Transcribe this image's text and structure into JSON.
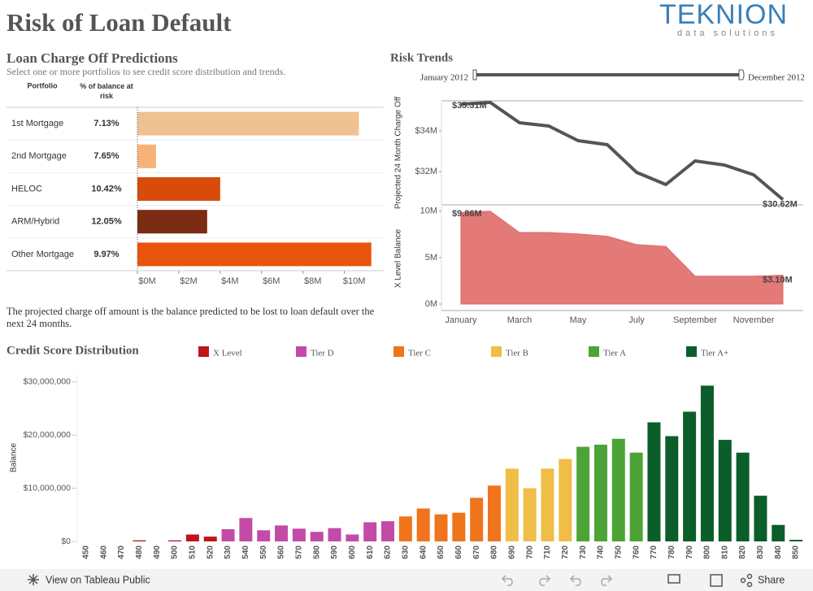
{
  "header": {
    "title": "Risk of Loan Default",
    "logo": "TEKNION",
    "logo_tagline": "data solutions"
  },
  "footer": {
    "view": "View on Tableau Public",
    "share": "Share"
  },
  "chart_data": [
    {
      "type": "bar",
      "orientation": "horizontal",
      "title": "Loan Charge Off Predictions",
      "subtitle": "Select one or more portfolios to see credit score distribution and trends.",
      "column_headers": [
        "Portfolio",
        "% of balance at risk"
      ],
      "categories": [
        "1st Mortgage",
        "2nd Mortgage",
        "HELOC",
        "ARM/Hybrid",
        "Other Mortgage"
      ],
      "at_risk": [
        "7.13%",
        "7.65%",
        "10.42%",
        "12.05%",
        "9.97%"
      ],
      "values": [
        10.7,
        0.9,
        4.0,
        3.37,
        11.3
      ],
      "colors": [
        "#f0c291",
        "#f7b27a",
        "#d84b0a",
        "#7b2c12",
        "#e8540c"
      ],
      "xlim": [
        0,
        11.9
      ],
      "xticks": [
        {
          "value": 0,
          "label": "$0M"
        },
        {
          "value": 2,
          "label": "$2M"
        },
        {
          "value": 4,
          "label": "$4M"
        },
        {
          "value": 6,
          "label": "$6M"
        },
        {
          "value": 8,
          "label": "$8M"
        },
        {
          "value": 10,
          "label": "$10M"
        }
      ],
      "note": "The projected charge off amount is the balance predicted to be lost to loan default over the next 24 months."
    },
    {
      "type": "line",
      "title": "Risk Trends",
      "range_start": "January 2012",
      "range_end": "December 2012",
      "ylabel": "Projected 24 Month Charge Off",
      "categories": [
        null,
        null,
        null,
        null,
        null,
        null,
        null,
        null,
        null,
        null,
        null,
        null
      ],
      "values": [
        35.31,
        35.4,
        34.4,
        34.24,
        33.52,
        33.32,
        31.96,
        31.36,
        32.52,
        32.32,
        31.84,
        30.62
      ],
      "value_labels": [
        "$35.31M",
        null,
        null,
        null,
        null,
        null,
        null,
        null,
        null,
        null,
        null,
        "$30.62M"
      ],
      "color": "#555555",
      "ylim": [
        30.36,
        35.48
      ],
      "yticks": [
        {
          "value": 32,
          "label": "$32M"
        },
        {
          "value": 34,
          "label": "$34M"
        }
      ]
    },
    {
      "type": "area",
      "ylabel": "X Level Balance",
      "categories": [
        "January",
        null,
        "March",
        null,
        "May",
        null,
        "July",
        null,
        "September",
        null,
        "November",
        null
      ],
      "values": [
        9.86,
        10.0,
        7.7,
        7.7,
        7.55,
        7.3,
        6.4,
        6.2,
        3.0,
        3.0,
        3.0,
        3.1
      ],
      "value_labels": [
        "$9.86M",
        null,
        null,
        null,
        null,
        null,
        null,
        null,
        null,
        null,
        null,
        "$3.10M"
      ],
      "color": "#e47a78",
      "ylim": [
        -0.7,
        10.5
      ],
      "yticks": [
        {
          "value": 0,
          "label": "0M"
        },
        {
          "value": 5,
          "label": "5M"
        },
        {
          "value": 10,
          "label": "10M"
        }
      ]
    },
    {
      "type": "bar",
      "title": "Credit Score Distribution",
      "ylabel": "Balance",
      "legend": "top",
      "categories": [
        450,
        460,
        470,
        480,
        490,
        500,
        510,
        520,
        530,
        540,
        550,
        560,
        570,
        580,
        590,
        600,
        610,
        620,
        630,
        640,
        650,
        660,
        670,
        680,
        690,
        700,
        710,
        720,
        730,
        740,
        750,
        760,
        770,
        780,
        790,
        800,
        810,
        820,
        830,
        840,
        850
      ],
      "series": [
        {
          "name": "X Level",
          "color": "#c0141c",
          "values": [
            0,
            0,
            0,
            200000,
            0,
            200000,
            1300000,
            900000,
            null,
            null,
            null,
            null,
            null,
            null,
            null,
            null,
            null,
            null,
            null,
            null,
            null,
            null,
            null,
            null,
            null,
            null,
            null,
            null,
            null,
            null,
            null,
            null,
            null,
            null,
            null,
            null,
            null,
            null,
            null,
            null,
            null
          ]
        },
        {
          "name": "Tier D",
          "color": "#c44aa8",
          "values": [
            null,
            null,
            null,
            null,
            null,
            null,
            null,
            null,
            2300000,
            4400000,
            2100000,
            3000000,
            2400000,
            1800000,
            2500000,
            1300000,
            3600000,
            3800000,
            null,
            null,
            null,
            null,
            null,
            null,
            null,
            null,
            null,
            null,
            null,
            null,
            null,
            null,
            null,
            null,
            null,
            null,
            null,
            null,
            null,
            null,
            null
          ]
        },
        {
          "name": "Tier C",
          "color": "#f0741c",
          "values": [
            null,
            null,
            null,
            null,
            null,
            null,
            null,
            null,
            null,
            null,
            null,
            null,
            null,
            null,
            null,
            null,
            null,
            null,
            4700000,
            6200000,
            5100000,
            5400000,
            8200000,
            10500000,
            null,
            null,
            null,
            null,
            null,
            null,
            null,
            null,
            null,
            null,
            null,
            null,
            null,
            null,
            null,
            null,
            null
          ]
        },
        {
          "name": "Tier B",
          "color": "#f0be46",
          "values": [
            null,
            null,
            null,
            null,
            null,
            null,
            null,
            null,
            null,
            null,
            null,
            null,
            null,
            null,
            null,
            null,
            null,
            null,
            null,
            null,
            null,
            null,
            null,
            null,
            13700000,
            10000000,
            13700000,
            15500000,
            null,
            null,
            null,
            null,
            null,
            null,
            null,
            null,
            null,
            null,
            null,
            null,
            null
          ]
        },
        {
          "name": "Tier A",
          "color": "#4ca436",
          "values": [
            null,
            null,
            null,
            null,
            null,
            null,
            null,
            null,
            null,
            null,
            null,
            null,
            null,
            null,
            null,
            null,
            null,
            null,
            null,
            null,
            null,
            null,
            null,
            null,
            null,
            null,
            null,
            null,
            17800000,
            18200000,
            19300000,
            16700000,
            null,
            null,
            null,
            null,
            null,
            null,
            null,
            null,
            null
          ]
        },
        {
          "name": "Tier A+",
          "color": "#0b5e2a",
          "values": [
            null,
            null,
            null,
            null,
            null,
            null,
            null,
            null,
            null,
            null,
            null,
            null,
            null,
            null,
            null,
            null,
            null,
            null,
            null,
            null,
            null,
            null,
            null,
            null,
            null,
            null,
            null,
            null,
            null,
            null,
            null,
            null,
            22400000,
            19800000,
            24400000,
            29300000,
            19100000,
            16700000,
            8600000,
            3100000,
            300000
          ]
        }
      ],
      "ylim": [
        0,
        31500000
      ],
      "yticks": [
        {
          "value": 0,
          "label": "$0"
        },
        {
          "value": 10000000,
          "label": "$10,000,000"
        },
        {
          "value": 20000000,
          "label": "$20,000,000"
        },
        {
          "value": 30000000,
          "label": "$30,000,000"
        }
      ]
    }
  ]
}
